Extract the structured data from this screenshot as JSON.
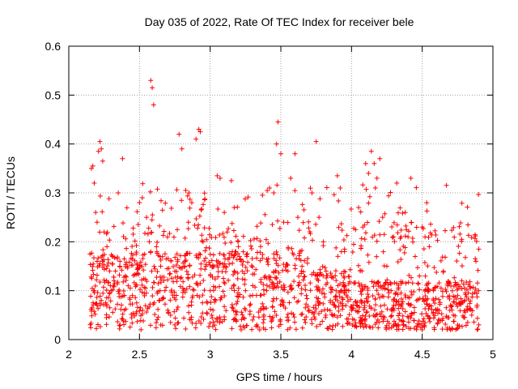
{
  "chart_data": {
    "type": "scatter",
    "title": "Day 035 of 2022, Rate Of TEC Index for receiver bele",
    "xlabel": "GPS time / hours",
    "ylabel": "ROTI / TECUs",
    "xlim": [
      2,
      5
    ],
    "ylim": [
      0,
      0.6
    ],
    "xticks": [
      2,
      2.5,
      3,
      3.5,
      4,
      4.5,
      5
    ],
    "xtick_labels": [
      "2",
      "2.5",
      "3",
      "3.5",
      "4",
      "4.5",
      "5"
    ],
    "yticks": [
      0,
      0.1,
      0.2,
      0.3,
      0.4,
      0.5,
      0.6
    ],
    "ytick_labels": [
      "0",
      "0.1",
      "0.2",
      "0.3",
      "0.4",
      "0.5",
      "0.6"
    ],
    "grid": true,
    "marker": "plus",
    "color": "#ff0000",
    "series": [
      {
        "name": "ROTI",
        "points": [
          [
            2.15,
            0.175
          ],
          [
            2.16,
            0.35
          ],
          [
            2.17,
            0.355
          ],
          [
            2.18,
            0.32
          ],
          [
            2.19,
            0.26
          ],
          [
            2.2,
            0.24
          ],
          [
            2.21,
            0.385
          ],
          [
            2.22,
            0.405
          ],
          [
            2.23,
            0.39
          ],
          [
            2.24,
            0.365
          ],
          [
            2.25,
            0.22
          ],
          [
            2.27,
            0.19
          ],
          [
            2.2,
            0.16
          ],
          [
            2.22,
            0.155
          ],
          [
            2.24,
            0.16
          ],
          [
            2.18,
            0.1
          ],
          [
            2.2,
            0.07
          ],
          [
            2.23,
            0.08
          ],
          [
            2.26,
            0.075
          ],
          [
            2.29,
            0.065
          ],
          [
            2.3,
            0.1
          ],
          [
            2.32,
            0.12
          ],
          [
            2.35,
            0.3
          ],
          [
            2.38,
            0.37
          ],
          [
            2.33,
            0.14
          ],
          [
            2.36,
            0.15
          ],
          [
            2.4,
            0.13
          ],
          [
            2.42,
            0.11
          ],
          [
            2.45,
            0.09
          ],
          [
            2.48,
            0.075
          ],
          [
            2.5,
            0.28
          ],
          [
            2.52,
            0.29
          ],
          [
            2.55,
            0.25
          ],
          [
            2.57,
            0.2
          ],
          [
            2.58,
            0.53
          ],
          [
            2.59,
            0.515
          ],
          [
            2.6,
            0.48
          ],
          [
            2.62,
            0.19
          ],
          [
            2.65,
            0.15
          ],
          [
            2.68,
            0.1
          ],
          [
            2.7,
            0.06
          ],
          [
            2.72,
            0.035
          ],
          [
            2.75,
            0.03
          ],
          [
            2.78,
            0.42
          ],
          [
            2.8,
            0.39
          ],
          [
            2.82,
            0.16
          ],
          [
            2.85,
            0.3
          ],
          [
            2.87,
            0.28
          ],
          [
            2.9,
            0.41
          ],
          [
            2.92,
            0.43
          ],
          [
            2.93,
            0.425
          ],
          [
            2.95,
            0.2
          ],
          [
            2.97,
            0.15
          ],
          [
            3.0,
            0.1
          ],
          [
            3.02,
            0.06
          ],
          [
            3.05,
            0.335
          ],
          [
            3.07,
            0.33
          ],
          [
            3.1,
            0.26
          ],
          [
            3.12,
            0.22
          ],
          [
            3.15,
            0.325
          ],
          [
            3.17,
            0.27
          ],
          [
            3.2,
            0.19
          ],
          [
            3.22,
            0.16
          ],
          [
            3.25,
            0.1
          ],
          [
            3.28,
            0.07
          ],
          [
            3.3,
            0.04
          ],
          [
            3.33,
            0.03
          ],
          [
            3.35,
            0.02
          ],
          [
            3.38,
            0.05
          ],
          [
            3.4,
            0.1
          ],
          [
            3.42,
            0.31
          ],
          [
            3.45,
            0.3
          ],
          [
            3.47,
            0.4
          ],
          [
            3.48,
            0.445
          ],
          [
            3.5,
            0.38
          ],
          [
            3.52,
            0.24
          ],
          [
            3.55,
            0.14
          ],
          [
            3.57,
            0.33
          ],
          [
            3.6,
            0.38
          ],
          [
            3.62,
            0.25
          ],
          [
            3.65,
            0.15
          ],
          [
            3.68,
            0.09
          ],
          [
            3.7,
            0.06
          ],
          [
            3.72,
            0.3
          ],
          [
            3.75,
            0.405
          ],
          [
            3.77,
            0.25
          ],
          [
            3.8,
            0.2
          ],
          [
            3.82,
            0.14
          ],
          [
            3.85,
            0.08
          ],
          [
            3.88,
            0.05
          ],
          [
            3.9,
            0.335
          ],
          [
            3.92,
            0.31
          ],
          [
            3.95,
            0.18
          ],
          [
            3.98,
            0.1
          ],
          [
            4.0,
            0.06
          ],
          [
            4.02,
            0.04
          ],
          [
            4.05,
            0.27
          ],
          [
            4.08,
            0.23
          ],
          [
            4.1,
            0.36
          ],
          [
            4.12,
            0.34
          ],
          [
            4.14,
            0.385
          ],
          [
            4.16,
            0.36
          ],
          [
            4.18,
            0.33
          ],
          [
            4.2,
            0.37
          ],
          [
            4.22,
            0.25
          ],
          [
            4.25,
            0.15
          ],
          [
            4.28,
            0.1
          ],
          [
            4.3,
            0.06
          ],
          [
            4.32,
            0.32
          ],
          [
            4.35,
            0.21
          ],
          [
            4.38,
            0.26
          ],
          [
            4.4,
            0.21
          ],
          [
            4.42,
            0.33
          ],
          [
            4.45,
            0.17
          ],
          [
            4.48,
            0.13
          ],
          [
            4.5,
            0.23
          ],
          [
            4.52,
            0.21
          ],
          [
            4.55,
            0.19
          ],
          [
            4.58,
            0.1
          ],
          [
            4.6,
            0.06
          ],
          [
            4.62,
            0.04
          ],
          [
            4.65,
            0.14
          ],
          [
            4.68,
            0.11
          ],
          [
            4.7,
            0.07
          ],
          [
            4.72,
            0.05
          ],
          [
            4.75,
            0.09
          ],
          [
            4.78,
            0.12
          ],
          [
            4.8,
            0.08
          ],
          [
            4.82,
            0.06
          ],
          [
            4.85,
            0.05
          ],
          [
            4.88,
            0.16
          ],
          [
            4.9,
            0.185
          ],
          [
            4.9,
            0.03
          ],
          [
            4.7,
            0.02
          ],
          [
            4.5,
            0.02
          ],
          [
            4.3,
            0.03
          ],
          [
            4.1,
            0.03
          ]
        ],
        "generated_cloud": true
      }
    ]
  }
}
